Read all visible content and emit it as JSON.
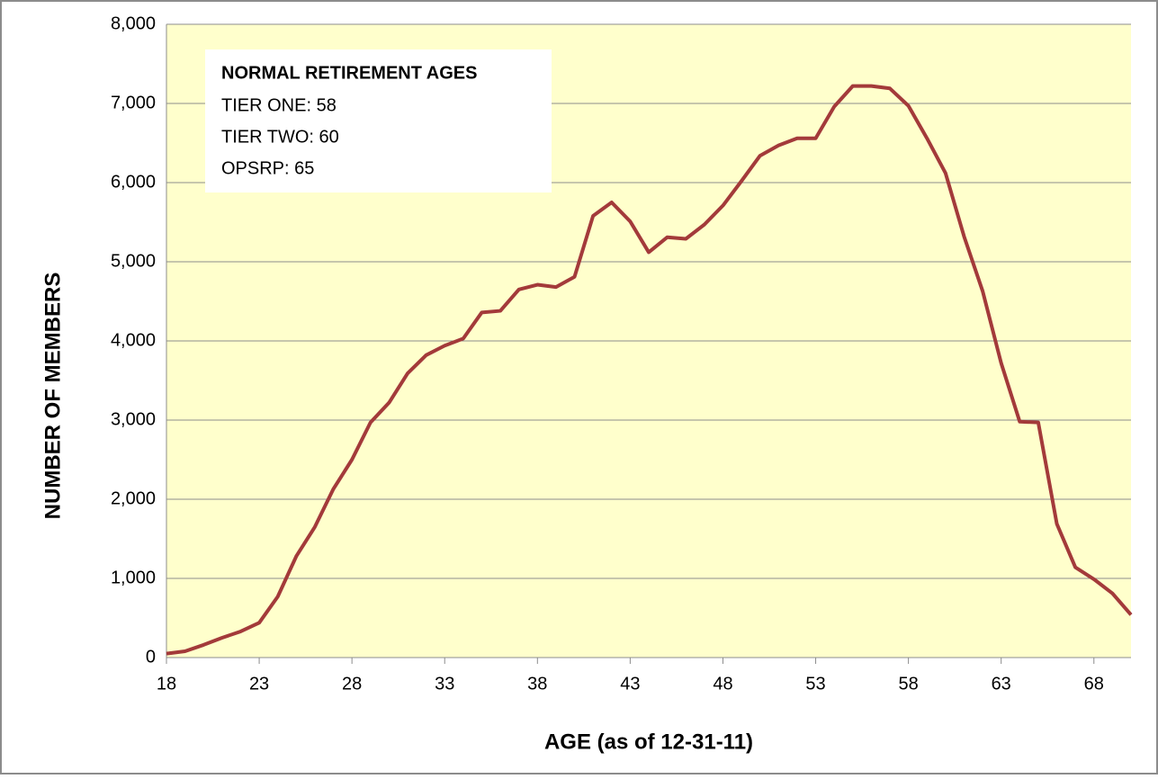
{
  "chart_data": {
    "type": "line",
    "x_label": "AGE (as of 12-31-11)",
    "y_label": "NUMBER OF MEMBERS",
    "annotation": {
      "title": "NORMAL RETIREMENT AGES",
      "lines": [
        "TIER ONE: 58",
        "TIER TWO: 60",
        "OPSRP: 65"
      ]
    },
    "x": [
      18,
      19,
      20,
      21,
      22,
      23,
      24,
      25,
      26,
      27,
      28,
      29,
      30,
      31,
      32,
      33,
      34,
      35,
      36,
      37,
      38,
      39,
      40,
      41,
      42,
      43,
      44,
      45,
      46,
      47,
      48,
      49,
      50,
      51,
      52,
      53,
      54,
      55,
      56,
      57,
      58,
      59,
      60,
      61,
      62,
      63,
      64,
      65,
      66,
      67,
      68,
      69,
      70
    ],
    "values": [
      50,
      80,
      160,
      250,
      330,
      440,
      770,
      1280,
      1650,
      2130,
      2500,
      2970,
      3220,
      3590,
      3820,
      3940,
      4030,
      4360,
      4380,
      4650,
      4710,
      4680,
      4810,
      5580,
      5750,
      5510,
      5120,
      5310,
      5290,
      5470,
      5710,
      6020,
      6340,
      6470,
      6560,
      6560,
      6960,
      7220,
      7220,
      7190,
      6970,
      6560,
      6120,
      5320,
      4630,
      3720,
      2980,
      2970,
      1690,
      1140,
      990,
      810,
      540
    ],
    "color": "#a33a3a",
    "background": "#ffffcc",
    "grid": true,
    "xlim": [
      18,
      70
    ],
    "xticks": [
      18,
      23,
      28,
      33,
      38,
      43,
      48,
      53,
      58,
      63,
      68
    ],
    "ylim": [
      0,
      8000
    ],
    "yticks": [
      0,
      {
        "value": 1000,
        "label": "1,000"
      },
      {
        "value": 2000,
        "label": "2,000"
      },
      {
        "value": 3000,
        "label": "3,000"
      },
      {
        "value": 4000,
        "label": "4,000"
      },
      {
        "value": 5000,
        "label": "5,000"
      },
      {
        "value": 6000,
        "label": "6,000"
      },
      {
        "value": 7000,
        "label": "7,000"
      },
      {
        "value": 8000,
        "label": "8,000"
      }
    ]
  }
}
